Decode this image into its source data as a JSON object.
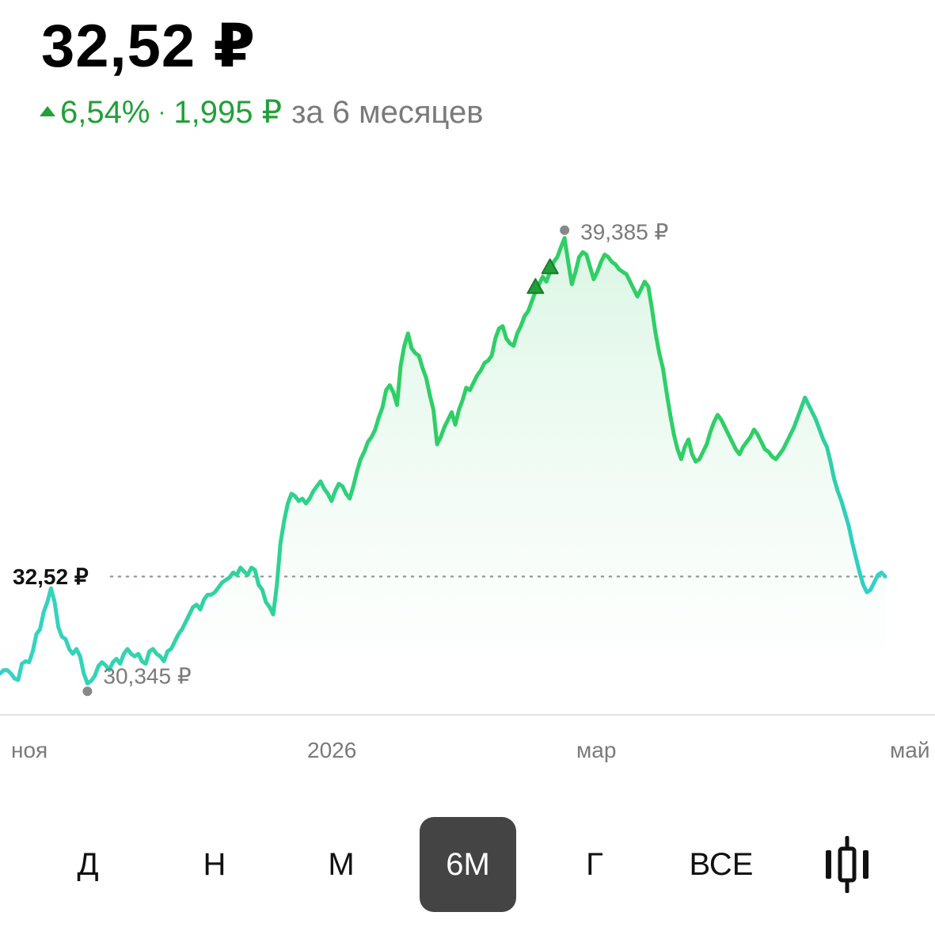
{
  "header": {
    "price": "32,52 ₽",
    "change_pct": "6,54%",
    "change_abs": "1,995 ₽",
    "period": "за 6 месяцев",
    "separator": "·"
  },
  "colors": {
    "up": "#21a038",
    "line_start": "#2fd0c8",
    "line_end": "#2ecc5a",
    "fill": "#e8f8ee",
    "tab_active_bg": "#444444"
  },
  "chart_data": {
    "type": "line",
    "x_labels": [
      "ноя",
      "2026",
      "мар",
      "май"
    ],
    "current_label": "32,52 ₽",
    "current_value": 32.52,
    "max_label": "39,385 ₽",
    "max_value": 39.385,
    "min_label": "30,345 ₽",
    "min_value": 30.345,
    "ylim": [
      29.6,
      40.2
    ],
    "markers": [
      {
        "type": "up-triangle",
        "index": 147
      },
      {
        "type": "up-triangle",
        "index": 151
      }
    ],
    "series": [
      {
        "values": [
          30.55,
          30.62,
          30.62,
          30.55,
          30.45,
          30.42,
          30.75,
          30.8,
          30.78,
          31.0,
          31.35,
          31.45,
          31.8,
          32.0,
          32.28,
          32.0,
          31.5,
          31.3,
          31.25,
          31.05,
          30.95,
          31.05,
          30.9,
          30.55,
          30.35,
          30.4,
          30.5,
          30.7,
          30.78,
          30.72,
          30.62,
          30.78,
          30.85,
          30.75,
          30.95,
          31.05,
          30.95,
          30.9,
          30.95,
          30.8,
          30.75,
          31.0,
          31.05,
          30.95,
          30.9,
          30.8,
          31.0,
          31.05,
          31.2,
          31.35,
          31.45,
          31.6,
          31.75,
          31.9,
          31.95,
          31.85,
          32.05,
          32.15,
          32.15,
          32.2,
          32.3,
          32.4,
          32.45,
          32.5,
          32.6,
          32.55,
          32.7,
          32.62,
          32.55,
          32.7,
          32.65,
          32.35,
          32.25,
          32.0,
          31.9,
          31.75,
          32.35,
          33.2,
          33.65,
          34.0,
          34.2,
          34.15,
          34.05,
          34.1,
          34.0,
          34.1,
          34.25,
          34.35,
          34.45,
          34.3,
          34.2,
          34.05,
          34.25,
          34.4,
          34.35,
          34.2,
          34.1,
          34.35,
          34.65,
          34.9,
          35.05,
          35.25,
          35.35,
          35.5,
          35.75,
          35.95,
          36.3,
          36.4,
          36.25,
          36.0,
          36.8,
          37.2,
          37.45,
          37.15,
          37.05,
          37.0,
          36.75,
          36.55,
          36.2,
          35.9,
          35.2,
          35.35,
          35.55,
          35.7,
          35.85,
          35.6,
          35.9,
          36.1,
          36.35,
          36.3,
          36.45,
          36.6,
          36.7,
          36.85,
          36.9,
          37.0,
          37.35,
          37.55,
          37.6,
          37.35,
          37.25,
          37.2,
          37.45,
          37.6,
          37.8,
          37.9,
          38.1,
          38.3,
          38.45,
          38.6,
          38.5,
          38.7,
          38.9,
          39.0,
          39.2,
          39.385,
          38.9,
          38.45,
          38.7,
          39.0,
          39.1,
          39.05,
          38.8,
          38.55,
          38.7,
          38.9,
          39.05,
          39.0,
          38.9,
          38.85,
          38.75,
          38.7,
          38.65,
          38.5,
          38.35,
          38.2,
          38.35,
          38.5,
          38.4,
          37.95,
          37.45,
          37.05,
          36.75,
          36.25,
          35.8,
          35.4,
          35.1,
          34.9,
          35.15,
          35.3,
          35.0,
          34.85,
          34.9,
          35.05,
          35.2,
          35.45,
          35.65,
          35.8,
          35.7,
          35.55,
          35.4,
          35.25,
          35.1,
          35.0,
          35.15,
          35.25,
          35.35,
          35.5,
          35.4,
          35.25,
          35.1,
          35.05,
          34.95,
          34.9,
          35.0,
          35.1,
          35.25,
          35.4,
          35.55,
          35.75,
          35.95,
          36.15,
          36.0,
          35.85,
          35.7,
          35.5,
          35.3,
          35.15,
          34.85,
          34.5,
          34.25,
          34.05,
          33.8,
          33.55,
          33.2,
          32.9,
          32.6,
          32.35,
          32.2,
          32.25,
          32.4,
          32.55,
          32.6,
          32.52
        ]
      }
    ]
  },
  "tabs": [
    {
      "label": "Д",
      "name": "tab-day",
      "active": false
    },
    {
      "label": "Н",
      "name": "tab-week",
      "active": false
    },
    {
      "label": "М",
      "name": "tab-month",
      "active": false
    },
    {
      "label": "6М",
      "name": "tab-6-months",
      "active": true
    },
    {
      "label": "Г",
      "name": "tab-year",
      "active": false
    },
    {
      "label": "ВСЕ",
      "name": "tab-all",
      "active": false
    }
  ],
  "candle_toggle_icon": "candlestick-icon"
}
